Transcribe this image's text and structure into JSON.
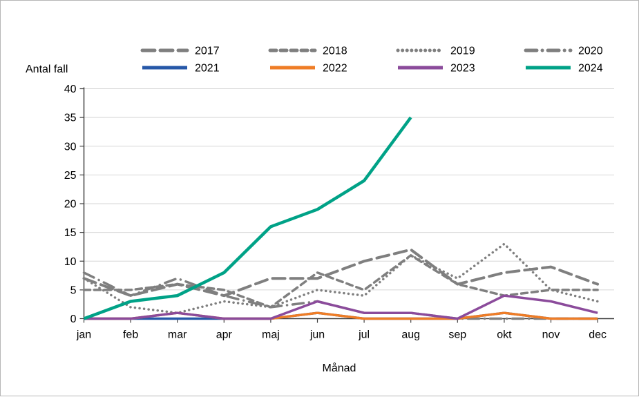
{
  "chart_data": {
    "type": "line",
    "title": "",
    "ylabel": "Antal fall",
    "xlabel": "Månad",
    "categories": [
      "jan",
      "feb",
      "mar",
      "apr",
      "maj",
      "jun",
      "jul",
      "aug",
      "sep",
      "okt",
      "nov",
      "dec"
    ],
    "ylim": [
      0,
      40
    ],
    "y_tick_step": 5,
    "y_tick_labels": [
      "0",
      "5",
      "10",
      "15",
      "20",
      "25",
      "30",
      "35",
      "40"
    ],
    "grid": "horizontal",
    "legend_position": "top",
    "legend_rows": 2,
    "legend_columns": 4,
    "colors": {
      "gray_history": "#7F7F7F",
      "blue_2021": "#2658A8",
      "orange_2022": "#EF7D26",
      "purple_2023": "#8B4B9B",
      "teal_2024": "#00A287",
      "gridline": "#D6D6D6",
      "axis": "#404040",
      "frame_border": "#B5B5B5"
    },
    "series": [
      {
        "name": "2017",
        "color": "#7F7F7F",
        "dash": "long-dash",
        "width": 4,
        "values": [
          7,
          4,
          6,
          4,
          7,
          7,
          10,
          12,
          6,
          8,
          9,
          6
        ]
      },
      {
        "name": "2018",
        "color": "#7F7F7F",
        "dash": "dash",
        "width": 3.5,
        "values": [
          5,
          5,
          6,
          5,
          2,
          8,
          5,
          11,
          6,
          4,
          5,
          5
        ]
      },
      {
        "name": "2019",
        "color": "#7F7F7F",
        "dash": "dot",
        "width": 3.5,
        "values": [
          7,
          2,
          1,
          3,
          2,
          5,
          4,
          11,
          7,
          13,
          5,
          3
        ]
      },
      {
        "name": "2020",
        "color": "#7F7F7F",
        "dash": "dash-dot",
        "width": 3.5,
        "values": [
          8,
          4,
          7,
          4,
          2,
          3,
          1,
          1,
          0,
          0,
          0,
          0
        ]
      },
      {
        "name": "2021",
        "color": "#2658A8",
        "dash": "solid",
        "width": 3.5,
        "values": [
          0,
          0,
          0,
          0,
          0,
          1,
          0,
          0,
          0,
          1,
          0,
          0
        ]
      },
      {
        "name": "2022",
        "color": "#EF7D26",
        "dash": "solid",
        "width": 3.5,
        "values": [
          0,
          0,
          1,
          0,
          0,
          1,
          0,
          0,
          0,
          1,
          0,
          0
        ]
      },
      {
        "name": "2023",
        "color": "#8B4B9B",
        "dash": "solid",
        "width": 3.5,
        "values": [
          0,
          0,
          1,
          0,
          0,
          3,
          1,
          1,
          0,
          4,
          3,
          1
        ]
      },
      {
        "name": "2024",
        "color": "#00A287",
        "dash": "solid",
        "width": 4.5,
        "values": [
          0,
          3,
          4,
          8,
          16,
          19,
          24,
          35
        ]
      }
    ]
  }
}
